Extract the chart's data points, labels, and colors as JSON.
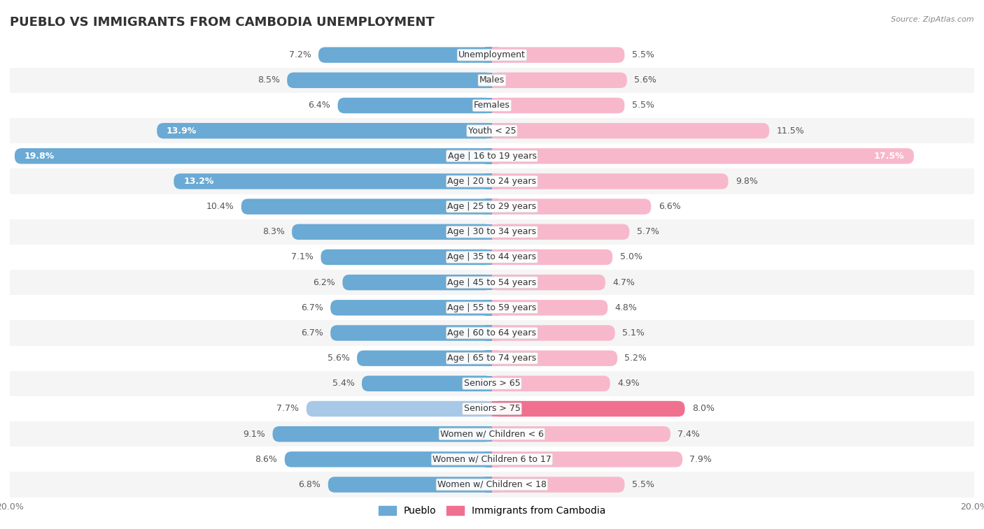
{
  "title": "PUEBLO VS IMMIGRANTS FROM CAMBODIA UNEMPLOYMENT",
  "source": "Source: ZipAtlas.com",
  "categories": [
    "Unemployment",
    "Males",
    "Females",
    "Youth < 25",
    "Age | 16 to 19 years",
    "Age | 20 to 24 years",
    "Age | 25 to 29 years",
    "Age | 30 to 34 years",
    "Age | 35 to 44 years",
    "Age | 45 to 54 years",
    "Age | 55 to 59 years",
    "Age | 60 to 64 years",
    "Age | 65 to 74 years",
    "Seniors > 65",
    "Seniors > 75",
    "Women w/ Children < 6",
    "Women w/ Children 6 to 17",
    "Women w/ Children < 18"
  ],
  "pueblo_values": [
    7.2,
    8.5,
    6.4,
    13.9,
    19.8,
    13.2,
    10.4,
    8.3,
    7.1,
    6.2,
    6.7,
    6.7,
    5.6,
    5.4,
    7.7,
    9.1,
    8.6,
    6.8
  ],
  "cambodia_values": [
    5.5,
    5.6,
    5.5,
    11.5,
    17.5,
    9.8,
    6.6,
    5.7,
    5.0,
    4.7,
    4.8,
    5.1,
    5.2,
    4.9,
    8.0,
    7.4,
    7.9,
    5.5
  ],
  "pueblo_color_normal": "#a8c8e8",
  "pueblo_color_bright": "#6aaad4",
  "cambodia_color_normal": "#f8b8cc",
  "cambodia_color_bright": "#f07090",
  "bg_color": "#ffffff",
  "row_color_odd": "#f5f5f5",
  "row_color_even": "#ffffff",
  "axis_limit": 20.0,
  "title_fontsize": 13,
  "label_fontsize": 9,
  "tick_fontsize": 9,
  "bar_height": 0.62
}
